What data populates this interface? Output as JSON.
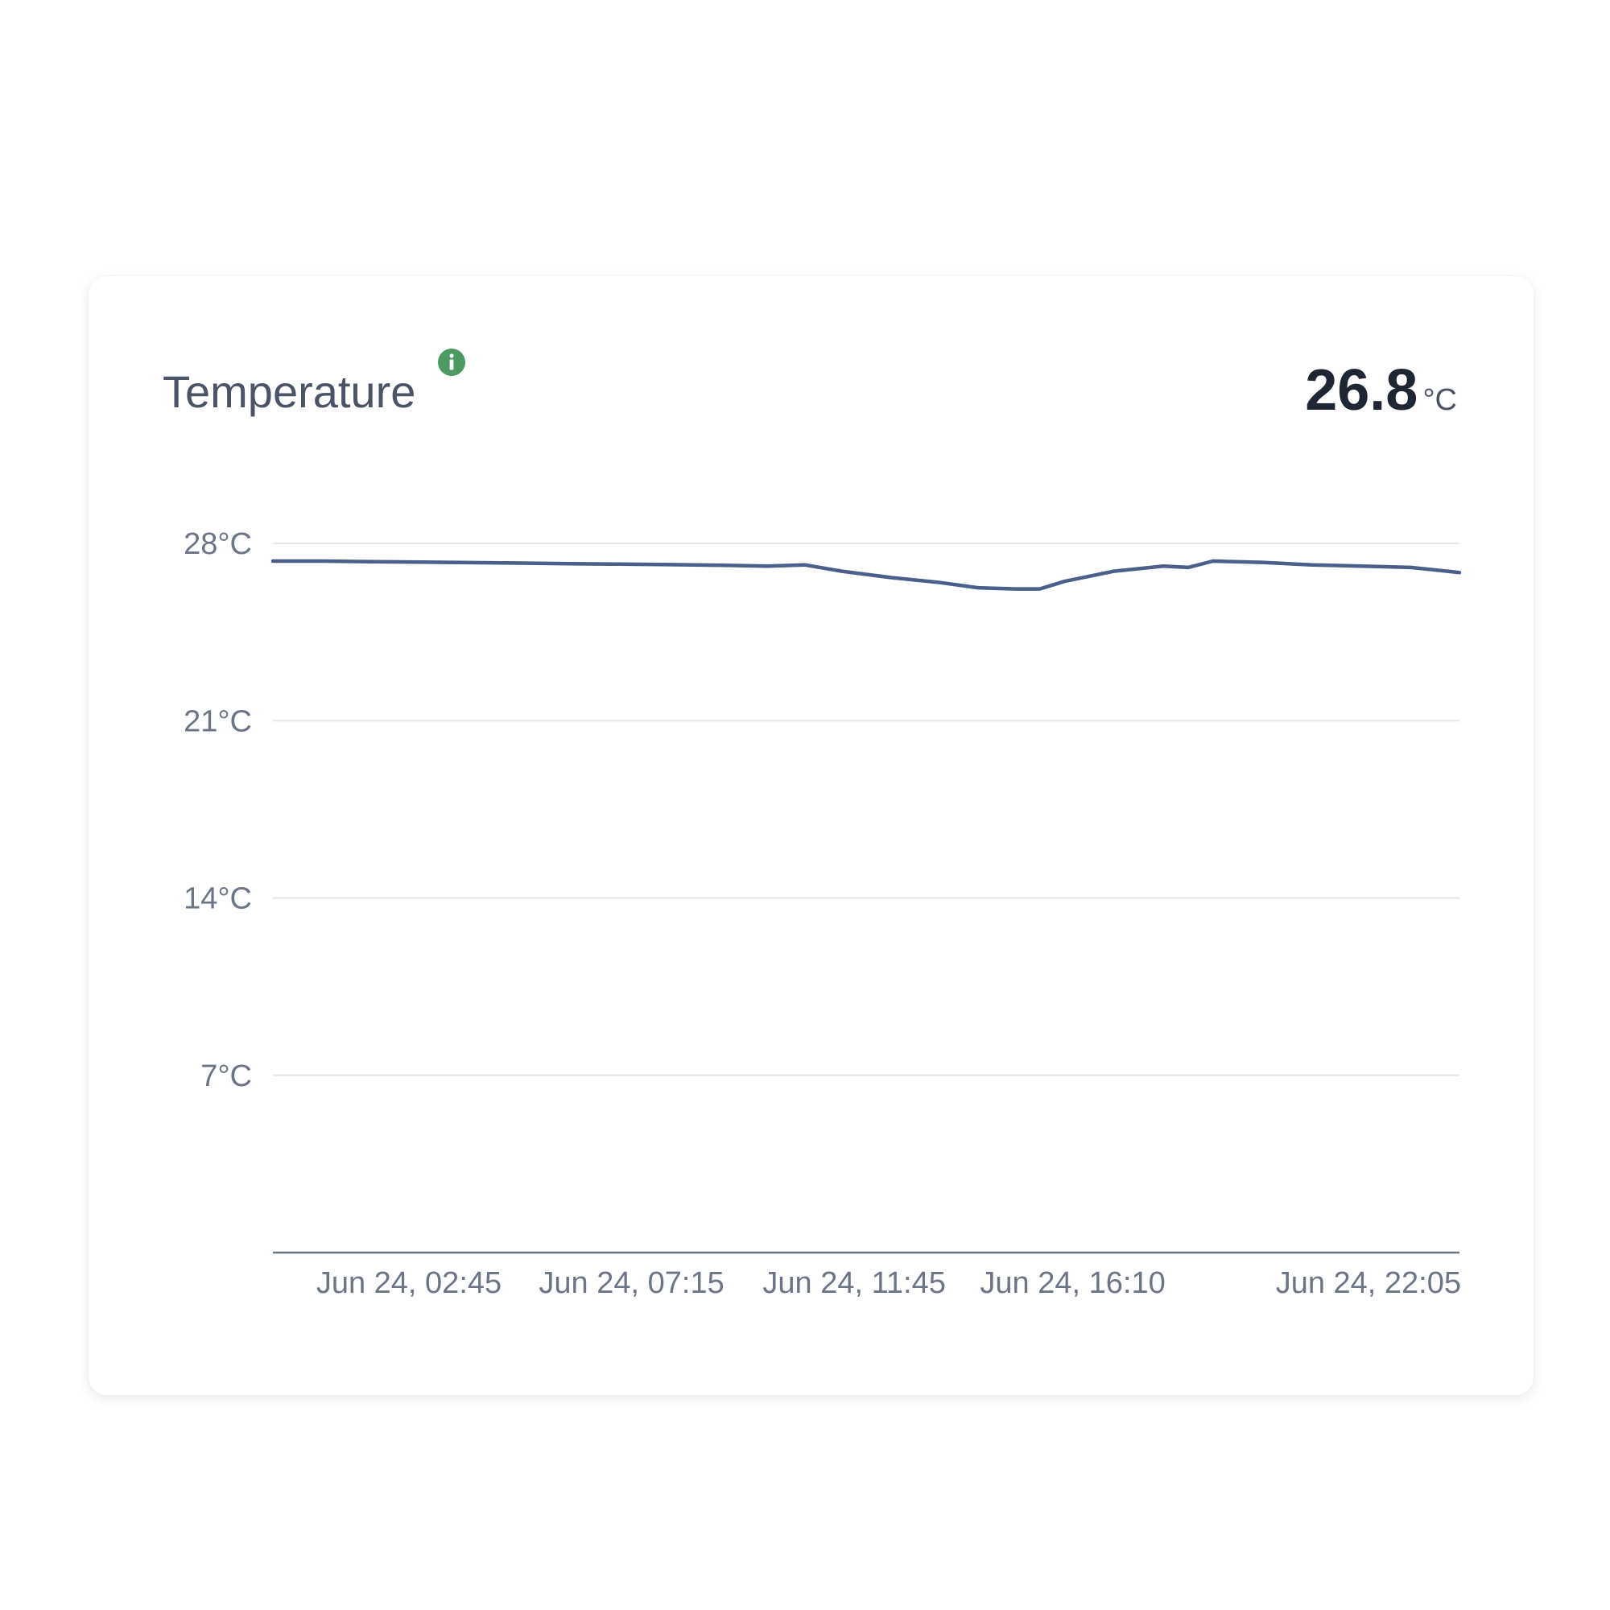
{
  "card": {
    "title": "Temperature",
    "current_value": "26.8",
    "current_unit": "°C"
  },
  "colors": {
    "line": "#4a5f8a",
    "info_icon": "#4a9a62",
    "grid": "#e3e6ec",
    "axis": "#6b7585"
  },
  "chart_data": {
    "type": "line",
    "title": "Temperature",
    "xlabel": "",
    "ylabel": "",
    "ylim": [
      0,
      28
    ],
    "xlim": [
      "Jun 24, 00:00",
      "Jun 24, 23:59"
    ],
    "y_ticks": [
      28,
      21,
      14,
      7
    ],
    "y_tick_labels": [
      "28°C",
      "21°C",
      "14°C",
      "7°C"
    ],
    "x_ticks": [
      "Jun 24, 02:45",
      "Jun 24, 07:15",
      "Jun 24, 11:45",
      "Jun 24, 16:10",
      "Jun 24, 22:05"
    ],
    "grid": true,
    "legend": "none",
    "series": [
      {
        "x": [
          "Jun 24, 00:00",
          "Jun 24, 01:00",
          "Jun 24, 02:00",
          "Jun 24, 03:00",
          "Jun 24, 04:00",
          "Jun 24, 05:00",
          "Jun 24, 06:00",
          "Jun 24, 07:00",
          "Jun 24, 08:00",
          "Jun 24, 09:00",
          "Jun 24, 10:00",
          "Jun 24, 10:45",
          "Jun 24, 11:30",
          "Jun 24, 12:30",
          "Jun 24, 13:30",
          "Jun 24, 14:15",
          "Jun 24, 15:00",
          "Jun 24, 15:30",
          "Jun 24, 16:00",
          "Jun 24, 17:00",
          "Jun 24, 18:00",
          "Jun 24, 18:30",
          "Jun 24, 19:00",
          "Jun 24, 20:00",
          "Jun 24, 21:00",
          "Jun 24, 22:00",
          "Jun 24, 23:00",
          "Jun 24, 23:59"
        ],
        "y": [
          27.3,
          27.3,
          27.28,
          27.26,
          27.24,
          27.22,
          27.2,
          27.18,
          27.16,
          27.14,
          27.1,
          27.15,
          26.9,
          26.65,
          26.45,
          26.25,
          26.2,
          26.2,
          26.5,
          26.9,
          27.1,
          27.05,
          27.3,
          27.25,
          27.15,
          27.1,
          27.05,
          26.85
        ]
      }
    ]
  }
}
